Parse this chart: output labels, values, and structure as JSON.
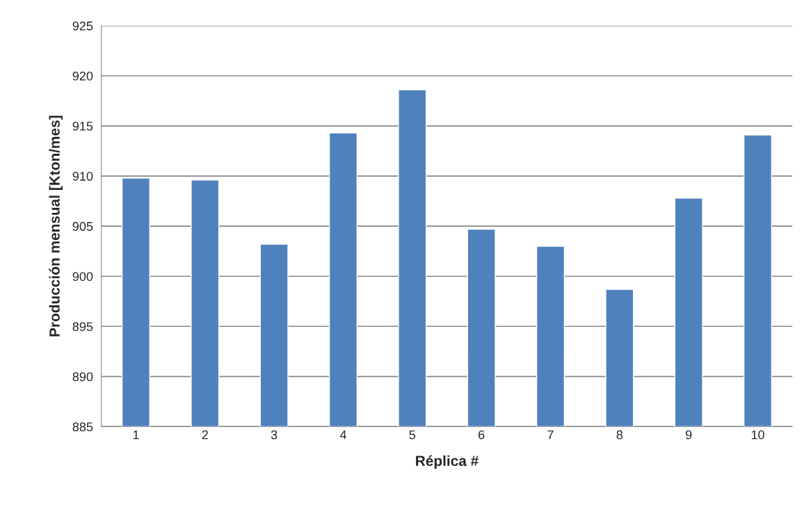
{
  "chart_data": {
    "type": "bar",
    "xlabel": "Réplica #",
    "ylabel": "Producción mensual [Kton/mes]",
    "categories": [
      "1",
      "2",
      "3",
      "4",
      "5",
      "6",
      "7",
      "8",
      "9",
      "10"
    ],
    "values": [
      909.8,
      909.6,
      903.2,
      914.3,
      918.6,
      904.7,
      903.0,
      898.7,
      907.8,
      914.1
    ],
    "color": "#4f81bd",
    "ylim": [
      885,
      925
    ],
    "yticks": [
      885,
      890,
      895,
      900,
      905,
      910,
      915,
      920,
      925
    ],
    "grid": "y",
    "legend": false
  }
}
